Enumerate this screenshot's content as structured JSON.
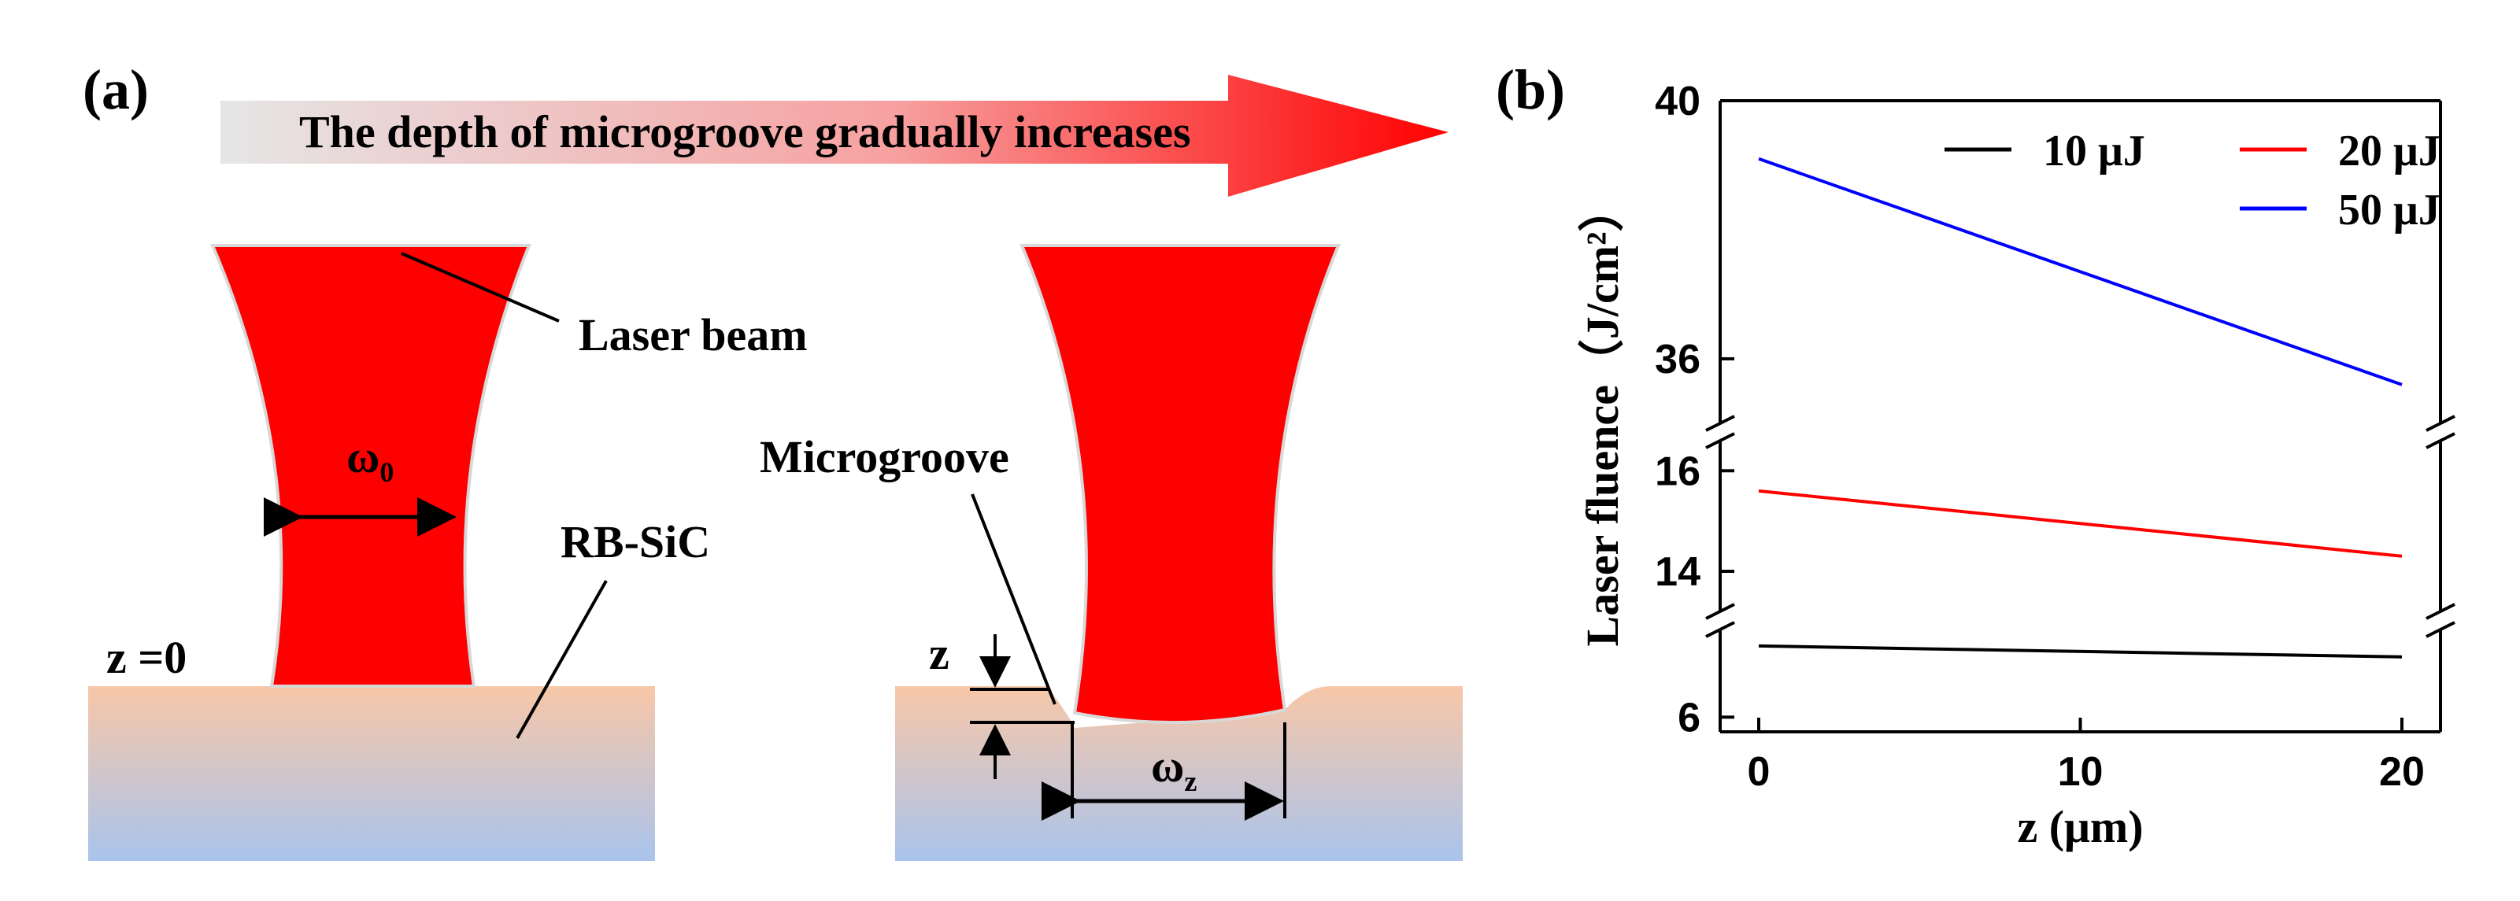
{
  "panel_a": {
    "label": "(a)",
    "arrow_text": "The depth of microgroove gradually increases",
    "laser_beam_label": "Laser beam",
    "waist_label": "ω",
    "waist_sub": "0",
    "substrate_label": "RB-SiC",
    "z0_label": "z =0",
    "microgroove_label": "Microgroove",
    "z_label": "z",
    "wz_label": "ω",
    "wz_sub": "z",
    "colors": {
      "beam": "#ff0000",
      "substrate_top": "#f8c7a8",
      "substrate_bottom": "#a9c4ec",
      "arrow_start": "#e6e6e6",
      "arrow_end": "#ff0000"
    }
  },
  "panel_b": {
    "label": "(b)",
    "chart_data": {
      "type": "line",
      "xlabel": "z (μm)",
      "ylabel": "Laser fluence（J/cm²）",
      "xlim": [
        -1.2,
        21.2
      ],
      "x_ticks": [
        0,
        10,
        20
      ],
      "y_segments": [
        {
          "range": [
            5.6,
            8.4
          ],
          "ticks": [
            6
          ]
        },
        {
          "range": [
            13.2,
            16.6
          ],
          "ticks": [
            14,
            16
          ]
        },
        {
          "range": [
            35.0,
            40.0
          ],
          "ticks": [
            36,
            40
          ]
        }
      ],
      "y_ticks_all": [
        6,
        14,
        16,
        36,
        40
      ],
      "axis_break": true,
      "legend": [
        "10 μJ",
        "20 μJ",
        "50 μJ"
      ],
      "legend_position": "top-right",
      "series": [
        {
          "name": "10 μJ",
          "color": "#000000",
          "x": [
            0,
            20
          ],
          "y": [
            7.95,
            7.65
          ]
        },
        {
          "name": "20 μJ",
          "color": "#ff0000",
          "x": [
            0,
            20
          ],
          "y": [
            15.6,
            14.3
          ]
        },
        {
          "name": "50 μJ",
          "color": "#0000ff",
          "x": [
            0,
            20
          ],
          "y": [
            39.1,
            35.6
          ]
        }
      ]
    }
  }
}
